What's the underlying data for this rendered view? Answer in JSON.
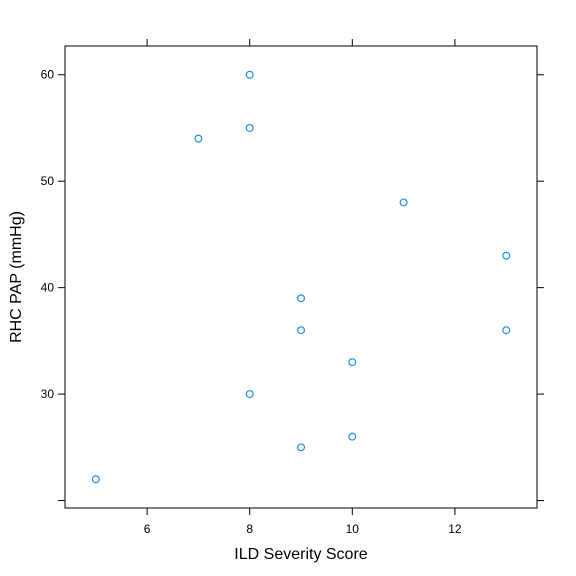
{
  "chart_data": {
    "type": "scatter",
    "xlabel": "ILD Severity Score",
    "ylabel": "RHC PAP (mmHg)",
    "xlim": [
      4.4,
      13.6
    ],
    "ylim": [
      19.3,
      62.7
    ],
    "xticks": [
      6,
      8,
      10,
      12
    ],
    "yticks": [
      20,
      30,
      40,
      50,
      60
    ],
    "ytick_labels": [
      "",
      "30",
      "40",
      "50",
      "60"
    ],
    "grid": false,
    "point_color": "#1f8fd6",
    "points": [
      {
        "x": 8,
        "y": 60
      },
      {
        "x": 7,
        "y": 54
      },
      {
        "x": 8,
        "y": 55
      },
      {
        "x": 11,
        "y": 48
      },
      {
        "x": 13,
        "y": 43
      },
      {
        "x": 9,
        "y": 39
      },
      {
        "x": 9,
        "y": 36
      },
      {
        "x": 13,
        "y": 36
      },
      {
        "x": 10,
        "y": 33
      },
      {
        "x": 8,
        "y": 30
      },
      {
        "x": 10,
        "y": 26
      },
      {
        "x": 9,
        "y": 25
      },
      {
        "x": 5,
        "y": 22
      }
    ]
  }
}
